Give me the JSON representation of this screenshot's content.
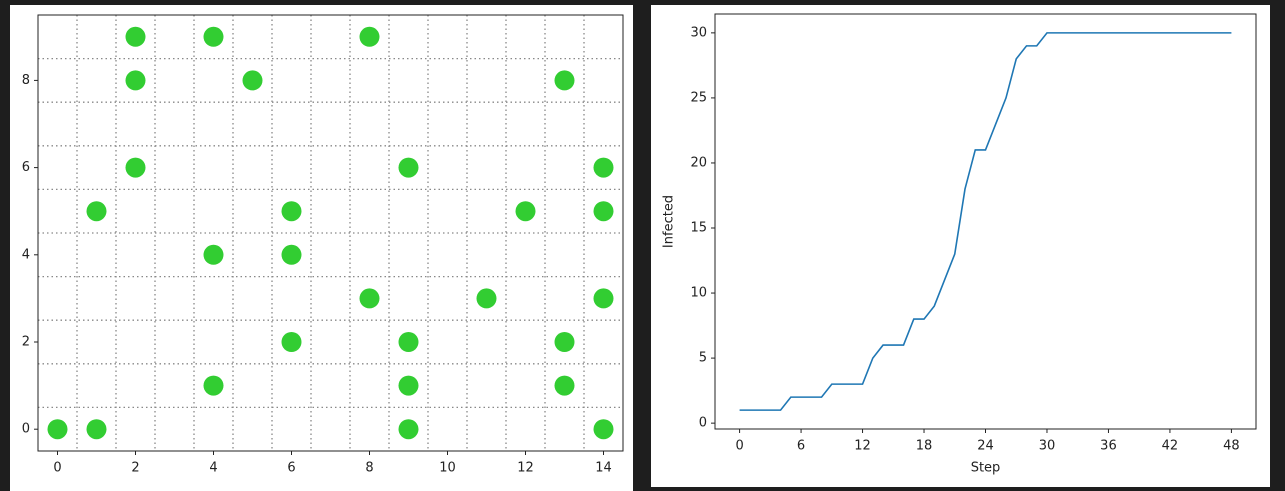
{
  "chart_data": [
    {
      "type": "scatter",
      "color": "#32cd32",
      "x": [
        2,
        4,
        8,
        2,
        5,
        13,
        2,
        9,
        14,
        1,
        6,
        12,
        14,
        4,
        6,
        8,
        11,
        14,
        6,
        9,
        13,
        4,
        9,
        13,
        0,
        1,
        9,
        14
      ],
      "y": [
        9,
        9,
        9,
        8,
        8,
        8,
        6,
        6,
        6,
        5,
        5,
        5,
        5,
        4,
        4,
        3,
        3,
        3,
        2,
        2,
        2,
        1,
        1,
        1,
        0,
        0,
        0,
        0
      ],
      "xlim": [
        -0.5,
        14.5
      ],
      "ylim": [
        -0.5,
        9.5
      ],
      "xticks": [
        0,
        2,
        4,
        6,
        8,
        10,
        12,
        14
      ],
      "yticks": [
        0,
        2,
        4,
        6,
        8
      ],
      "xgrid": [
        0.5,
        1.5,
        2.5,
        3.5,
        4.5,
        5.5,
        6.5,
        7.5,
        8.5,
        9.5,
        10.5,
        11.5,
        12.5,
        13.5
      ],
      "ygrid": [
        0.5,
        1.5,
        2.5,
        3.5,
        4.5,
        5.5,
        6.5,
        7.5,
        8.5
      ]
    },
    {
      "type": "line",
      "color": "#1f77b4",
      "xlabel": "Step",
      "ylabel": "Infected",
      "x": [
        0,
        1,
        2,
        3,
        4,
        5,
        6,
        7,
        8,
        9,
        10,
        11,
        12,
        13,
        14,
        15,
        16,
        17,
        18,
        19,
        20,
        21,
        22,
        23,
        24,
        25,
        26,
        27,
        28,
        29,
        30,
        31,
        32,
        33,
        34,
        35,
        36,
        37,
        38,
        39,
        40,
        41,
        42,
        43,
        44,
        45,
        46,
        47,
        48
      ],
      "values": [
        1,
        1,
        1,
        1,
        1,
        2,
        2,
        2,
        2,
        3,
        3,
        3,
        3,
        5,
        6,
        6,
        6,
        8,
        8,
        9,
        11,
        13,
        18,
        21,
        21,
        23,
        25,
        28,
        29,
        29,
        30,
        30,
        30,
        30,
        30,
        30,
        30,
        30,
        30,
        30,
        30,
        30,
        30,
        30,
        30,
        30,
        30,
        30,
        30
      ],
      "xlim": [
        -2.4,
        50.4
      ],
      "ylim": [
        -0.45,
        31.45
      ],
      "xticks": [
        0,
        6,
        12,
        18,
        24,
        30,
        36,
        42,
        48
      ],
      "yticks": [
        0,
        5,
        10,
        15,
        20,
        25,
        30
      ]
    }
  ]
}
